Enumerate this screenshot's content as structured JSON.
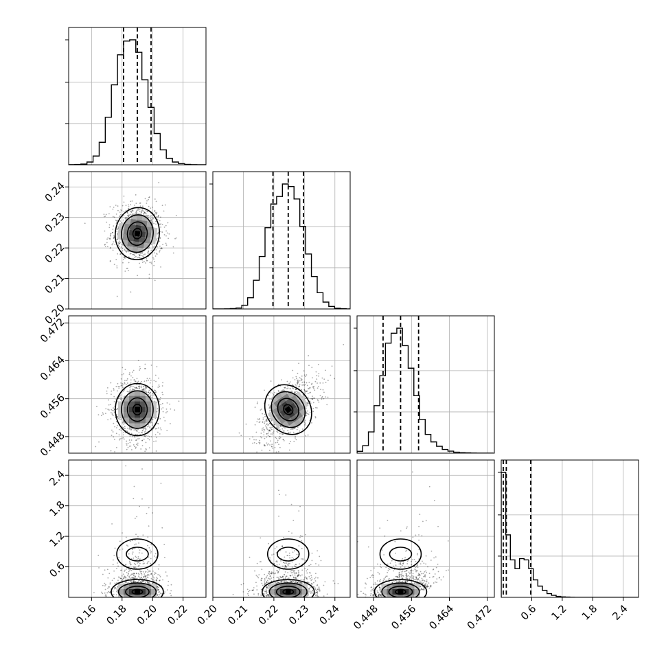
{
  "chart_data": {
    "type": "corner",
    "grid": true,
    "parameters": [
      {
        "axis_range": [
          0.145,
          0.235
        ],
        "ticks": [
          0.16,
          0.18,
          0.2,
          0.22
        ],
        "tick_labels": [
          "0.16",
          "0.18",
          "0.20",
          "0.22"
        ],
        "mean": 0.19,
        "std": 0.0085,
        "quantiles": [
          0.181,
          0.19,
          0.199
        ]
      },
      {
        "axis_range": [
          0.2,
          0.245
        ],
        "ticks": [
          0.2,
          0.21,
          0.22,
          0.23,
          0.24
        ],
        "tick_labels": [
          "0.20",
          "0.21",
          "0.22",
          "0.23",
          "0.24"
        ],
        "mean": 0.2247,
        "std": 0.005,
        "quantiles": [
          0.2197,
          0.2247,
          0.2297
        ]
      },
      {
        "axis_range": [
          0.4445,
          0.4735
        ],
        "ticks": [
          0.448,
          0.456,
          0.464,
          0.472
        ],
        "tick_labels": [
          "0.448",
          "0.456",
          "0.464",
          "0.472"
        ],
        "mean": 0.4537,
        "std": 0.0036,
        "quantiles": [
          0.45,
          0.4537,
          0.4575
        ]
      },
      {
        "axis_range": [
          0.0,
          2.7
        ],
        "ticks": [
          0.6,
          1.2,
          1.8,
          2.4
        ],
        "tick_labels": [
          "0.6",
          "1.2",
          "1.8",
          "2.4"
        ],
        "quantiles": [
          0.04,
          0.1,
          0.58
        ]
      }
    ],
    "histograms": [
      {
        "param": 0,
        "bins": [
          0.145,
          0.149,
          0.153,
          0.157,
          0.161,
          0.165,
          0.169,
          0.173,
          0.177,
          0.181,
          0.185,
          0.189,
          0.193,
          0.197,
          0.201,
          0.205,
          0.209,
          0.213,
          0.217,
          0.221,
          0.225,
          0.229,
          0.233,
          0.237
        ],
        "counts": [
          1,
          2,
          6,
          22,
          70,
          180,
          380,
          640,
          880,
          990,
          1000,
          900,
          680,
          460,
          250,
          120,
          52,
          22,
          9,
          3,
          1,
          0,
          0
        ]
      },
      {
        "param": 1,
        "bins": [
          0.2,
          0.2019,
          0.2038,
          0.2057,
          0.2076,
          0.2095,
          0.2114,
          0.2133,
          0.2152,
          0.2171,
          0.219,
          0.2209,
          0.2228,
          0.2247,
          0.2266,
          0.2285,
          0.2304,
          0.2323,
          0.2342,
          0.2361,
          0.238,
          0.2399,
          0.2418,
          0.2437,
          0.2456
        ],
        "counts": [
          0,
          0,
          1,
          3,
          8,
          30,
          90,
          230,
          420,
          650,
          840,
          900,
          1000,
          980,
          880,
          660,
          440,
          260,
          130,
          55,
          20,
          6,
          2,
          0
        ]
      },
      {
        "param": 2,
        "bins": [
          0.4445,
          0.4457,
          0.4469,
          0.4481,
          0.4493,
          0.4505,
          0.4517,
          0.4529,
          0.4541,
          0.4553,
          0.4565,
          0.4577,
          0.4589,
          0.4601,
          0.4613,
          0.4625,
          0.4637,
          0.4649,
          0.4661,
          0.4673,
          0.4685,
          0.4697,
          0.4709,
          0.4721,
          0.4733
        ],
        "counts": [
          15,
          60,
          170,
          380,
          620,
          880,
          960,
          1000,
          860,
          680,
          460,
          270,
          150,
          90,
          55,
          30,
          16,
          8,
          4,
          2,
          1,
          0,
          0,
          0
        ]
      },
      {
        "param": 3,
        "bins": [
          0.0,
          0.09,
          0.18,
          0.27,
          0.36,
          0.45,
          0.54,
          0.63,
          0.72,
          0.81,
          0.9,
          0.99,
          1.08,
          1.17,
          1.26,
          1.35,
          1.44,
          1.53,
          1.62,
          1.71,
          1.8,
          1.89,
          1.98,
          2.07,
          2.16,
          2.25,
          2.34,
          2.43,
          2.52,
          2.61,
          2.7
        ],
        "counts": [
          1000,
          500,
          300,
          230,
          310,
          300,
          230,
          140,
          90,
          55,
          30,
          16,
          8,
          4,
          2,
          1,
          0,
          0,
          0,
          0,
          0,
          0,
          0,
          0,
          0,
          0,
          0,
          0,
          0,
          0
        ]
      }
    ],
    "pairs": [
      {
        "x_param": 0,
        "y_param": 1,
        "correlation": -0.05
      },
      {
        "x_param": 0,
        "y_param": 2,
        "correlation": 0.02
      },
      {
        "x_param": 1,
        "y_param": 2,
        "correlation": 0.55
      },
      {
        "x_param": 0,
        "y_param": 3,
        "correlation": 0.0
      },
      {
        "x_param": 1,
        "y_param": 3,
        "correlation": 0.0
      },
      {
        "x_param": 2,
        "y_param": 3,
        "correlation": 0.2
      }
    ]
  }
}
